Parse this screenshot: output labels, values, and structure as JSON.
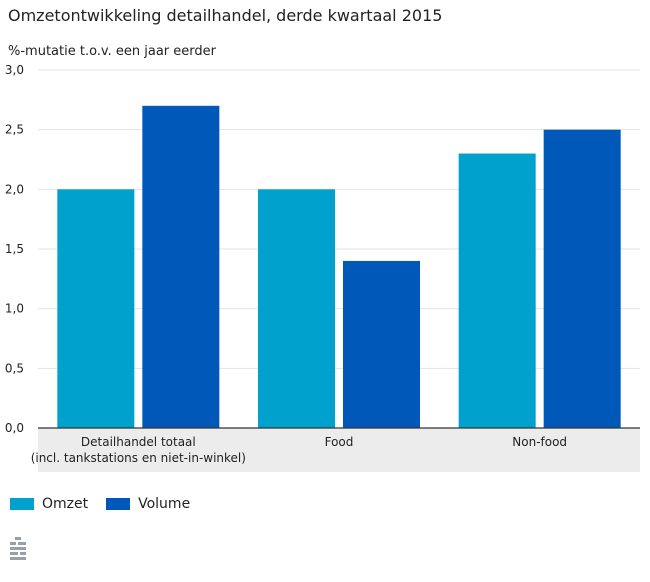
{
  "title": "Omzetontwikkeling detailhandel, derde kwartaal 2015",
  "subtitle": "%-mutatie t.o.v. een jaar eerder",
  "chart_data": {
    "type": "bar",
    "title": "Omzetontwikkeling detailhandel, derde kwartaal 2015",
    "ylabel": "%-mutatie t.o.v. een jaar eerder",
    "xlabel": "",
    "categories": [
      [
        "Detailhandel totaal",
        "(incl. tankstations en niet-in-winkel)"
      ],
      [
        "Food"
      ],
      [
        "Non-food"
      ]
    ],
    "series": [
      {
        "name": "Omzet",
        "color": "#00a1cd",
        "values": [
          2.0,
          2.0,
          2.3
        ]
      },
      {
        "name": "Volume",
        "color": "#0058b8",
        "values": [
          2.7,
          1.4,
          2.5
        ]
      }
    ],
    "ylim": [
      0,
      3
    ],
    "yticks": [
      "0,0",
      "0,5",
      "1,0",
      "1,5",
      "2,0",
      "2,5",
      "3,0"
    ],
    "ytick_values": [
      0,
      0.5,
      1.0,
      1.5,
      2.0,
      2.5,
      3.0
    ],
    "grid": true,
    "legend_position": "bottom-left"
  },
  "legend": [
    {
      "label": "Omzet",
      "color": "#00a1cd"
    },
    {
      "label": "Volume",
      "color": "#0058b8"
    }
  ],
  "logo_icon": "cbs-logo-icon"
}
